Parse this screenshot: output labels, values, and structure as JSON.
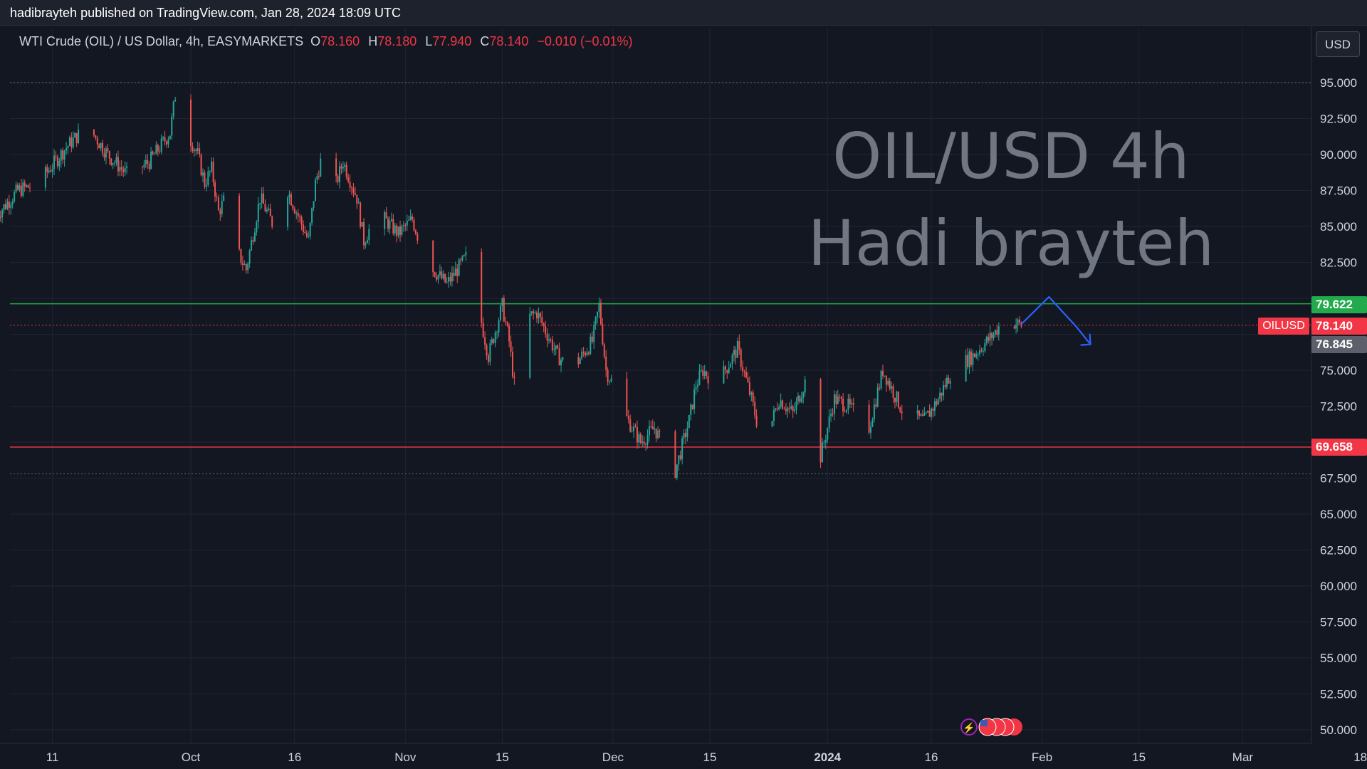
{
  "header": {
    "published_line": "hadibrayteh published on TradingView.com, Jan 28, 2024 18:09 UTC"
  },
  "legend": {
    "symbol_desc": "WTI Crude (OIL) / US Dollar, 4h, EASYMARKETS",
    "o_label": "O",
    "o_value": "78.160",
    "h_label": "H",
    "h_value": "78.180",
    "l_label": "L",
    "l_value": "77.940",
    "c_label": "C",
    "c_value": "78.140",
    "change": "−0.010 (−0.01%)"
  },
  "watermark": {
    "line1": "OIL/USD 4h",
    "line2": "Hadi brayteh"
  },
  "currency_button": "USD",
  "price_tags": {
    "resistance": "79.622",
    "current": "78.140",
    "symbol": "OILUSD",
    "low_tag": "76.845",
    "support": "69.658"
  },
  "colors": {
    "background": "#131722",
    "up": "#26a69a",
    "down": "#ef5350",
    "resistance_line": "#22ab4c",
    "support_line": "#f23645",
    "projection": "#2962ff"
  },
  "chart_data": {
    "type": "candlestick",
    "timeframe": "4h",
    "ylim": [
      49,
      96.5
    ],
    "y_ticks": [
      95,
      92.5,
      90,
      87.5,
      85,
      82.5,
      80,
      77.5,
      75,
      72.5,
      70,
      67.5,
      65,
      62.5,
      60,
      57.5,
      55,
      52.5,
      50
    ],
    "y_tick_labels": [
      "95.000",
      "92.500",
      "90.000",
      "87.500",
      "85.000",
      "82.500",
      "",
      "",
      "75.000",
      "72.500",
      "",
      "67.500",
      "65.000",
      "62.500",
      "60.000",
      "57.500",
      "55.000",
      "52.500",
      "50.000"
    ],
    "x_tick_labels": [
      "11",
      "Oct",
      "16",
      "Nov",
      "15",
      "Dec",
      "15",
      "2024",
      "16",
      "Feb",
      "15",
      "Mar",
      "18"
    ],
    "x_tick_days": [
      -20,
      0,
      15,
      31,
      45,
      61,
      75,
      92,
      107,
      123,
      137,
      152,
      169
    ],
    "x_bold_labels": [
      "2024"
    ],
    "price_path_days": [
      -28,
      -25,
      -22,
      -18,
      -15,
      -12,
      -9,
      -6,
      -3,
      -2,
      0,
      1,
      2,
      3,
      4,
      5,
      6,
      8,
      10,
      12,
      14,
      17,
      18,
      19,
      20,
      22,
      24,
      25,
      27,
      30,
      32,
      34,
      37,
      40,
      43,
      45,
      46,
      47,
      48,
      50,
      53,
      55,
      58,
      59,
      60,
      61,
      62,
      65,
      67,
      70,
      72,
      73,
      74,
      76,
      79,
      81,
      82,
      83,
      85,
      87,
      89,
      90,
      91,
      93,
      95,
      98,
      100,
      103,
      106,
      108,
      110,
      113,
      116,
      117,
      118,
      119,
      120
    ],
    "price_path_values": [
      85.8,
      87.5,
      88,
      90.5,
      92,
      90,
      88.5,
      89.5,
      91.5,
      95,
      91,
      90,
      88,
      89,
      86,
      87,
      84,
      82,
      87,
      85,
      87.5,
      84,
      88,
      90,
      86.5,
      89.5,
      87,
      84,
      86,
      84.5,
      85.5,
      82.5,
      81,
      83,
      76,
      79.5,
      77,
      73,
      78.5,
      79,
      76,
      75,
      77,
      79.5,
      75,
      74,
      72.5,
      70,
      71,
      68,
      71.5,
      74,
      75,
      74,
      76.5,
      73,
      71,
      70,
      73,
      72,
      74.5,
      71,
      69,
      73,
      72.5,
      71,
      75,
      72,
      71.5,
      73,
      75,
      76,
      77.5,
      78.2,
      78.2,
      78.3,
      78.14
    ],
    "horizontal_levels": [
      {
        "name": "resistance",
        "value": 79.622
      },
      {
        "name": "support",
        "value": 69.658
      }
    ],
    "dotted_levels": [
      95.0,
      78.14,
      67.8
    ],
    "projection_path": [
      {
        "day": 120,
        "value": 78.2
      },
      {
        "day": 124,
        "value": 80.1
      },
      {
        "day": 128,
        "value": 78.0
      },
      {
        "day": 130,
        "value": 76.8
      }
    ]
  }
}
